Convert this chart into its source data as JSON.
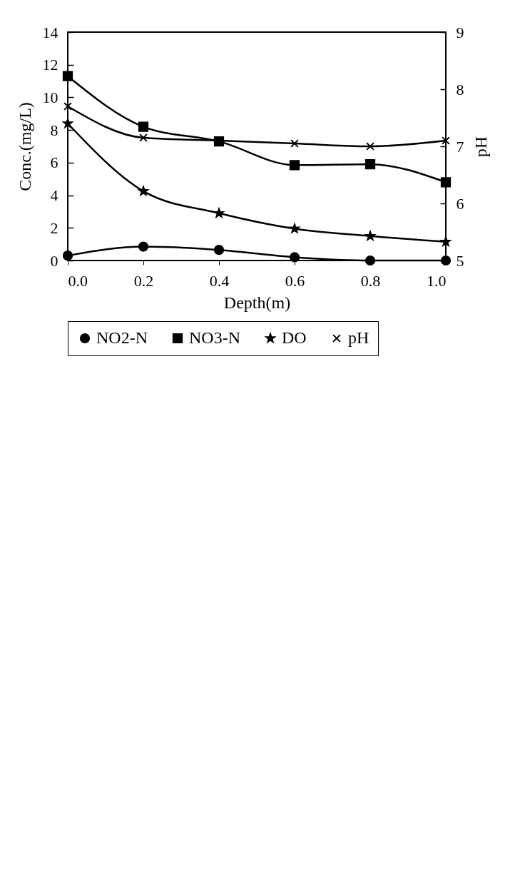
{
  "chart_data": {
    "type": "line",
    "xlabel": "Depth(m)",
    "ylabel": "Conc.(mg/L)",
    "y2label": "pH",
    "x": [
      0,
      0.2,
      0.4,
      0.6,
      0.8,
      1.0
    ],
    "xlim": [
      0,
      1
    ],
    "xticks": [
      {
        "value": 0,
        "label": "0.0"
      },
      0.2,
      0.4,
      0.6,
      0.8,
      {
        "value": 1,
        "label": "1.0"
      }
    ],
    "ylim": [
      0,
      14
    ],
    "yticks": [
      0,
      2,
      4,
      6,
      8,
      10,
      12,
      14
    ],
    "y2lim": [
      5,
      9
    ],
    "y2ticks": [
      5,
      6,
      7,
      8,
      9
    ],
    "series": [
      {
        "name": "NO2-N",
        "color": "#000000",
        "marker": "circle",
        "values": [
          0.3,
          0.85,
          0.65,
          0.2,
          0,
          0
        ]
      },
      {
        "name": "NO3-N",
        "color": "#000000",
        "marker": "square",
        "values": [
          11.3,
          8.2,
          7.3,
          5.85,
          5.9,
          4.8
        ]
      },
      {
        "name": "DO",
        "color": "#000000",
        "marker": "star",
        "values": [
          8.4,
          4.25,
          2.9,
          1.95,
          1.5,
          1.15
        ]
      },
      {
        "name": "pH",
        "color": "#000000",
        "marker": "cross",
        "axis": "y2",
        "values": [
          7.7,
          7.15,
          7.1,
          7.05,
          7.0,
          7.1
        ]
      }
    ],
    "grid": false,
    "legend": "bottom",
    "line_style": "solid"
  }
}
